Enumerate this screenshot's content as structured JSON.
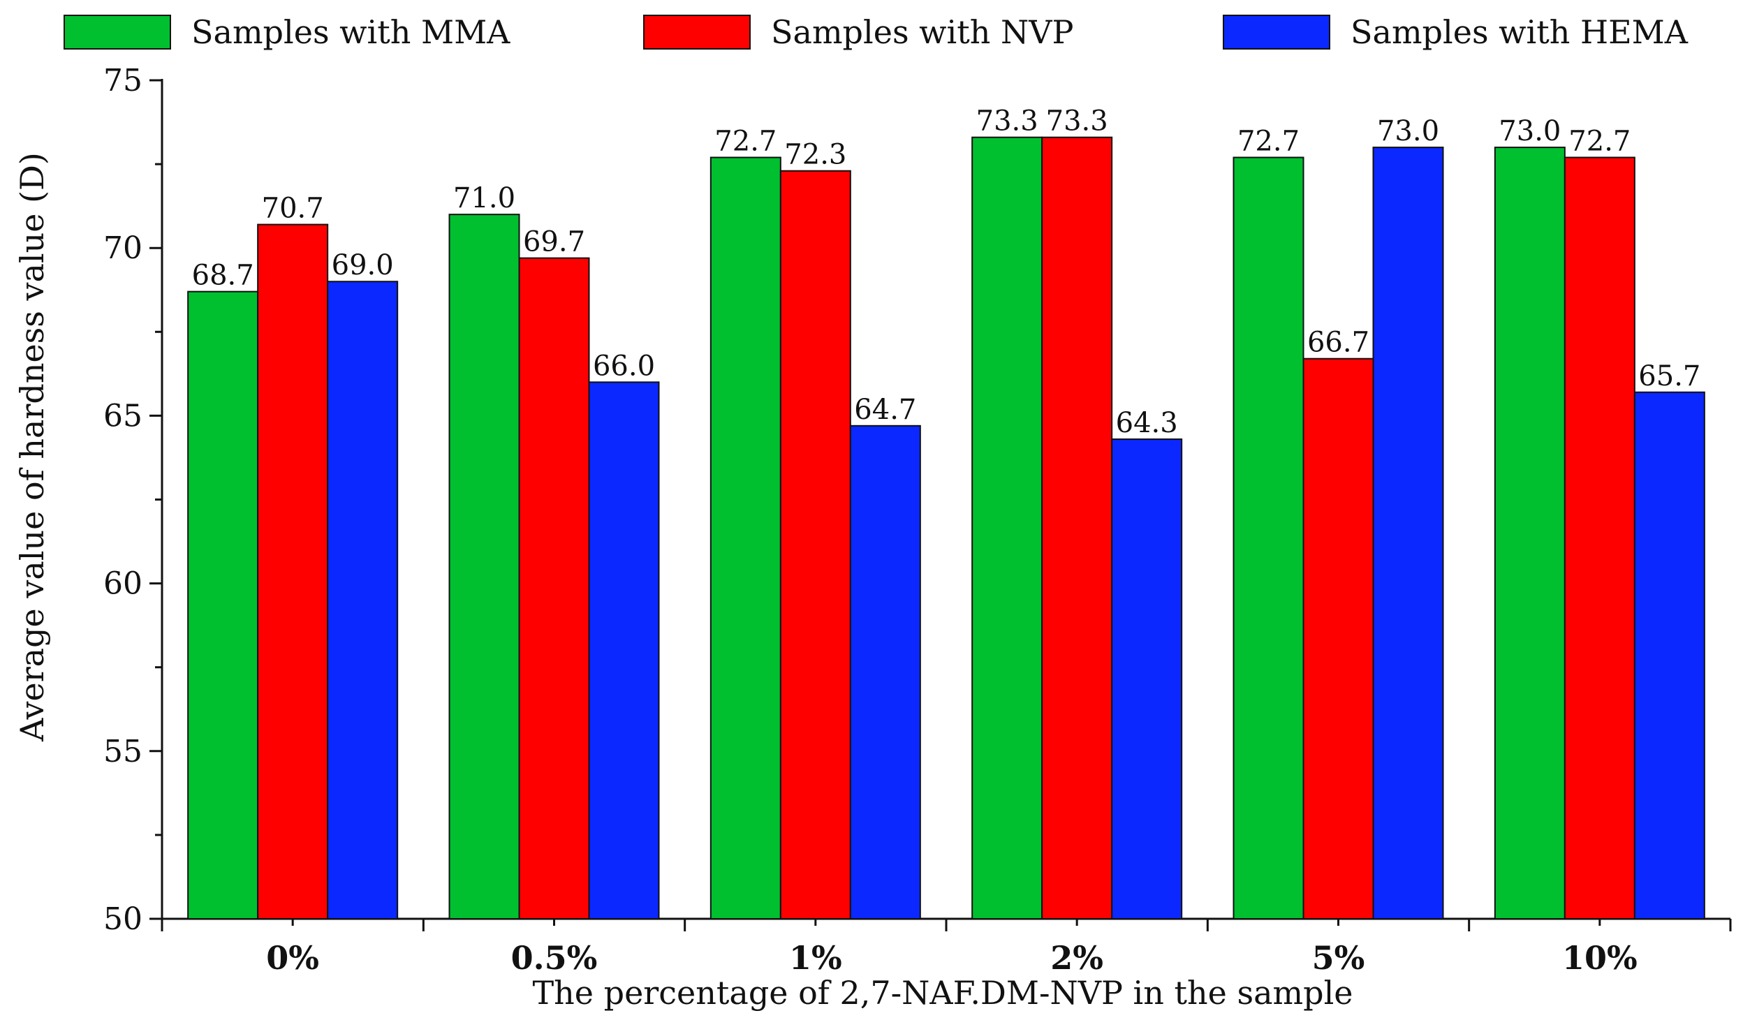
{
  "chart_data": {
    "type": "bar",
    "title": "",
    "xlabel": "The percentage of 2,7-NAF.DM-NVP in the sample",
    "ylabel": "Average value of hardness value (D)",
    "ylim": [
      50,
      75
    ],
    "yticks": [
      50,
      55,
      60,
      65,
      70,
      75
    ],
    "categories": [
      "0%",
      "0.5%",
      "1%",
      "2%",
      "5%",
      "10%"
    ],
    "series": [
      {
        "name": "Samples with MMA",
        "color": "#00c030",
        "values": [
          68.7,
          71.0,
          72.7,
          73.3,
          72.7,
          73.0
        ],
        "labels": [
          "68.7",
          "71.0",
          "72.7",
          "73.3",
          "72.7",
          "73.0"
        ]
      },
      {
        "name": "Samples with NVP",
        "color": "#ff0000",
        "values": [
          70.7,
          69.7,
          72.3,
          73.3,
          66.7,
          72.7
        ],
        "labels": [
          "70.7",
          "69.7",
          "72.3",
          "73.3",
          "66.7",
          "72.7"
        ]
      },
      {
        "name": "Samples with HEMA",
        "color": "#0a28ff",
        "values": [
          69.0,
          66.0,
          64.7,
          64.3,
          73.0,
          65.7
        ],
        "labels": [
          "69.0",
          "66.0",
          "64.7",
          "64.3",
          "73.0",
          "65.7"
        ]
      }
    ],
    "legend_position": "top",
    "grid": false
  }
}
